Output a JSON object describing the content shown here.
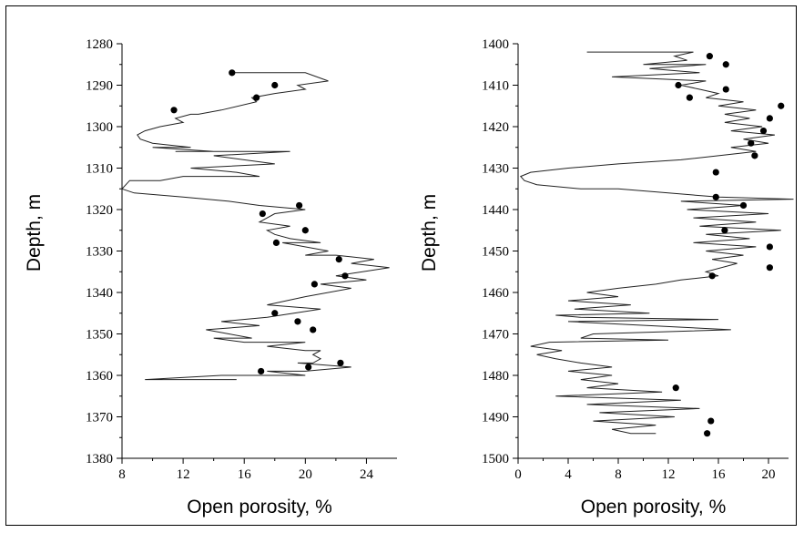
{
  "chart_data": [
    {
      "type": "line",
      "xlabel": "Open porosity, %",
      "ylabel": "Depth, m",
      "xlim": [
        8,
        26
      ],
      "ylim": [
        1280,
        1380
      ],
      "y_inverted": true,
      "xticks": [
        8,
        12,
        16,
        20,
        24
      ],
      "yticks": [
        1280,
        1290,
        1300,
        1310,
        1320,
        1330,
        1340,
        1350,
        1360,
        1370,
        1380
      ],
      "series": [
        {
          "kind": "line",
          "x": [
            15.0,
            20.0,
            21.5,
            19.5,
            20.0,
            18.0,
            16.5,
            16.8,
            14.5,
            13.0,
            12.5,
            11.5,
            12.0,
            10.5,
            9.5,
            9.0,
            9.2,
            10.0,
            12.5,
            10.0,
            14.0,
            11.5,
            19.0,
            14.0,
            18.0,
            12.5,
            15.5,
            17.0,
            12.0,
            10.5,
            8.5,
            8.0,
            8.8,
            12.0,
            15.0,
            17.0,
            20.0,
            18.0,
            17.0,
            19.0,
            17.5,
            18.0,
            19.0,
            21.0,
            18.5,
            21.5,
            20.0,
            22.0,
            24.5,
            23.0,
            25.5,
            22.0,
            24.0,
            21.0,
            23.0,
            20.0,
            17.5,
            21.0,
            17.5,
            14.5,
            17.0,
            13.5,
            15.0,
            16.5,
            14.0,
            16.0,
            20.0,
            17.5,
            20.0,
            21.0,
            20.5,
            21.0,
            20.5,
            19.5,
            23.0,
            20.0,
            17.5,
            20.0,
            17.0,
            14.5,
            9.5,
            15.5
          ],
          "y": [
            1287,
            1287,
            1289,
            1290,
            1291,
            1292,
            1293,
            1294,
            1296,
            1297,
            1297,
            1298,
            1299,
            1300,
            1301,
            1302,
            1303,
            1304,
            1305,
            1305,
            1306,
            1306,
            1306,
            1307,
            1309,
            1310,
            1311,
            1312,
            1312,
            1313,
            1313,
            1315,
            1316,
            1317,
            1318,
            1319,
            1320,
            1321,
            1323,
            1324,
            1325,
            1326,
            1327,
            1328,
            1328,
            1330,
            1331,
            1331,
            1332,
            1333,
            1334,
            1336,
            1337,
            1338,
            1339,
            1341,
            1343,
            1344,
            1346,
            1347,
            1348,
            1349,
            1350,
            1351,
            1351,
            1352,
            1352,
            1353,
            1354,
            1354,
            1355,
            1356,
            1357,
            1357,
            1358,
            1359,
            1359,
            1360,
            1360,
            1360,
            1361,
            1361
          ]
        },
        {
          "kind": "points",
          "x": [
            15.2,
            18.0,
            16.8,
            11.4,
            19.6,
            17.2,
            20.0,
            18.1,
            22.2,
            22.6,
            20.6,
            18.0,
            19.5,
            20.5,
            22.3,
            20.2,
            17.1
          ],
          "y": [
            1287,
            1290,
            1293,
            1296,
            1319,
            1321,
            1325,
            1328,
            1332,
            1336,
            1338,
            1345,
            1347,
            1349,
            1357,
            1358,
            1359
          ]
        }
      ]
    },
    {
      "type": "line",
      "xlabel": "Open porosity, %",
      "ylabel": "Depth, m",
      "xlim": [
        0,
        21.6
      ],
      "ylim": [
        1400,
        1500
      ],
      "y_inverted": true,
      "xticks": [
        0,
        4,
        8,
        12,
        16,
        20
      ],
      "yticks": [
        1400,
        1410,
        1420,
        1430,
        1440,
        1450,
        1460,
        1470,
        1480,
        1490,
        1500
      ],
      "series": [
        {
          "kind": "line",
          "x": [
            5.5,
            14.0,
            12.5,
            13.5,
            10.0,
            15.0,
            10.5,
            14.5,
            7.5,
            15.0,
            13.0,
            14.5,
            16.0,
            15.0,
            18.0,
            16.0,
            19.0,
            16.5,
            18.5,
            16.5,
            19.5,
            17.0,
            20.5,
            18.0,
            20.0,
            17.0,
            19.0,
            16.0,
            13.0,
            8.0,
            4.0,
            1.0,
            0.2,
            0.5,
            1.5,
            5.0,
            8.0,
            12.0,
            16.0,
            22.0,
            13.0,
            18.0,
            13.5,
            20.0,
            14.0,
            19.0,
            14.5,
            21.0,
            15.0,
            18.5,
            14.0,
            19.0,
            15.0,
            18.0,
            15.5,
            17.5,
            15.0,
            16.0,
            13.0,
            11.0,
            8.0,
            5.5,
            8.0,
            4.0,
            9.0,
            4.5,
            10.5,
            3.0,
            5.0,
            16.0,
            4.0,
            17.0,
            6.0,
            5.0,
            12.0,
            2.5,
            1.0,
            3.5,
            1.5,
            3.0,
            5.0,
            7.5,
            4.0,
            7.5,
            5.0,
            8.0,
            5.5,
            11.5,
            3.0,
            13.0,
            5.5,
            14.5,
            6.5,
            12.5,
            6.0,
            11.0,
            7.5,
            9.0,
            11.0
          ],
          "y": [
            1402,
            1402,
            1403,
            1404,
            1405,
            1405,
            1406,
            1407,
            1408,
            1409,
            1410,
            1411,
            1412,
            1413,
            1414,
            1415,
            1416,
            1417,
            1418,
            1419,
            1420,
            1421,
            1422,
            1423,
            1424,
            1425,
            1426,
            1427,
            1428,
            1429,
            1430,
            1431,
            1432,
            1433,
            1434,
            1435,
            1435,
            1436,
            1437,
            1437.5,
            1438,
            1439,
            1440,
            1441,
            1442,
            1443,
            1444,
            1445,
            1446,
            1447,
            1448,
            1449,
            1450,
            1451,
            1452,
            1453,
            1455,
            1456,
            1457,
            1458,
            1459,
            1460,
            1461,
            1462,
            1463,
            1464,
            1465,
            1465.5,
            1466,
            1466.5,
            1467,
            1469,
            1470,
            1471,
            1471.5,
            1472,
            1473,
            1474,
            1475,
            1476,
            1477,
            1478,
            1479,
            1480,
            1481,
            1482,
            1483,
            1484,
            1485,
            1486,
            1487,
            1488,
            1489,
            1490,
            1491,
            1492,
            1493,
            1494,
            1494
          ]
        },
        {
          "kind": "points",
          "x": [
            15.3,
            16.6,
            12.8,
            16.6,
            13.7,
            21.0,
            20.1,
            19.6,
            18.6,
            18.9,
            15.8,
            15.8,
            18.0,
            16.5,
            20.1,
            20.1,
            15.5,
            12.6,
            15.4,
            15.1
          ],
          "y": [
            1403,
            1405,
            1410,
            1411,
            1413,
            1415,
            1418,
            1421,
            1424,
            1427,
            1431,
            1437,
            1439,
            1445,
            1449,
            1454,
            1456,
            1483,
            1491,
            1494
          ]
        }
      ]
    }
  ]
}
